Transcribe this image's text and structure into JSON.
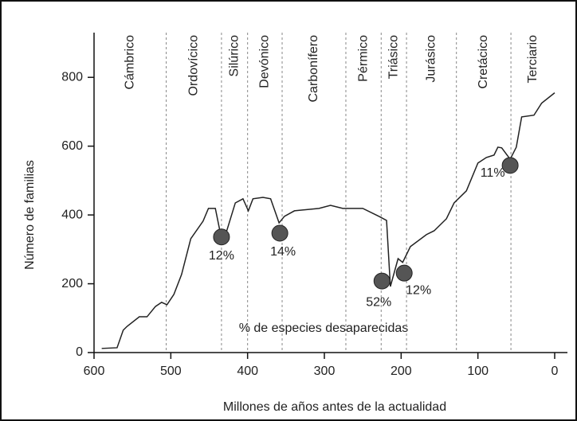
{
  "chart_data": {
    "type": "line",
    "x_label": "Millones de años antes de la actualidad",
    "y_label": "Número de familias",
    "annotation": "% de especies desaparecidas",
    "xlim": [
      600,
      0
    ],
    "ylim": [
      0,
      930
    ],
    "xticks": [
      600,
      500,
      400,
      300,
      200,
      100,
      0
    ],
    "yticks": [
      0,
      200,
      400,
      600,
      800
    ],
    "x": [
      590,
      570,
      562,
      557,
      541,
      531,
      520,
      512,
      505,
      496,
      486,
      474,
      458,
      451,
      442,
      434,
      427,
      416,
      406,
      399,
      393,
      380,
      370,
      359,
      352,
      339,
      307,
      292,
      276,
      250,
      229,
      219,
      214,
      204,
      198,
      188,
      167,
      157,
      141,
      131,
      115,
      100,
      89,
      79,
      74,
      69,
      58,
      50,
      43,
      27,
      17,
      0
    ],
    "series": [
      {
        "color": "#222222",
        "values": [
          12,
          14,
          65,
          76,
          104,
          104,
          134,
          146,
          139,
          169,
          227,
          331,
          382,
          419,
          419,
          331,
          355,
          435,
          447,
          412,
          447,
          451,
          447,
          377,
          396,
          412,
          419,
          428,
          419,
          419,
          396,
          384,
          192,
          273,
          262,
          308,
          343,
          354,
          389,
          435,
          470,
          551,
          567,
          574,
          597,
          595,
          562,
          597,
          685,
          690,
          725,
          755
        ]
      }
    ],
    "periods": [
      "Cámbrico",
      "Ordovícico",
      "Silúrico",
      "Devónico",
      "Carbonífero",
      "Pérmico",
      "Triásico",
      "Jurásico",
      "Cretácico",
      "Terciario"
    ],
    "period_boundaries": [
      600,
      506,
      434,
      400,
      355,
      272,
      226,
      193,
      128,
      57,
      0
    ],
    "extinctions": [
      {
        "x": 434,
        "y": 336,
        "label": "12%"
      },
      {
        "x": 358,
        "y": 347,
        "label": "14%"
      },
      {
        "x": 225,
        "y": 208,
        "label": "52%"
      },
      {
        "x": 196,
        "y": 231,
        "label": "12%"
      },
      {
        "x": 58,
        "y": 544,
        "label": "11%"
      }
    ],
    "marker_color": "#555555"
  }
}
